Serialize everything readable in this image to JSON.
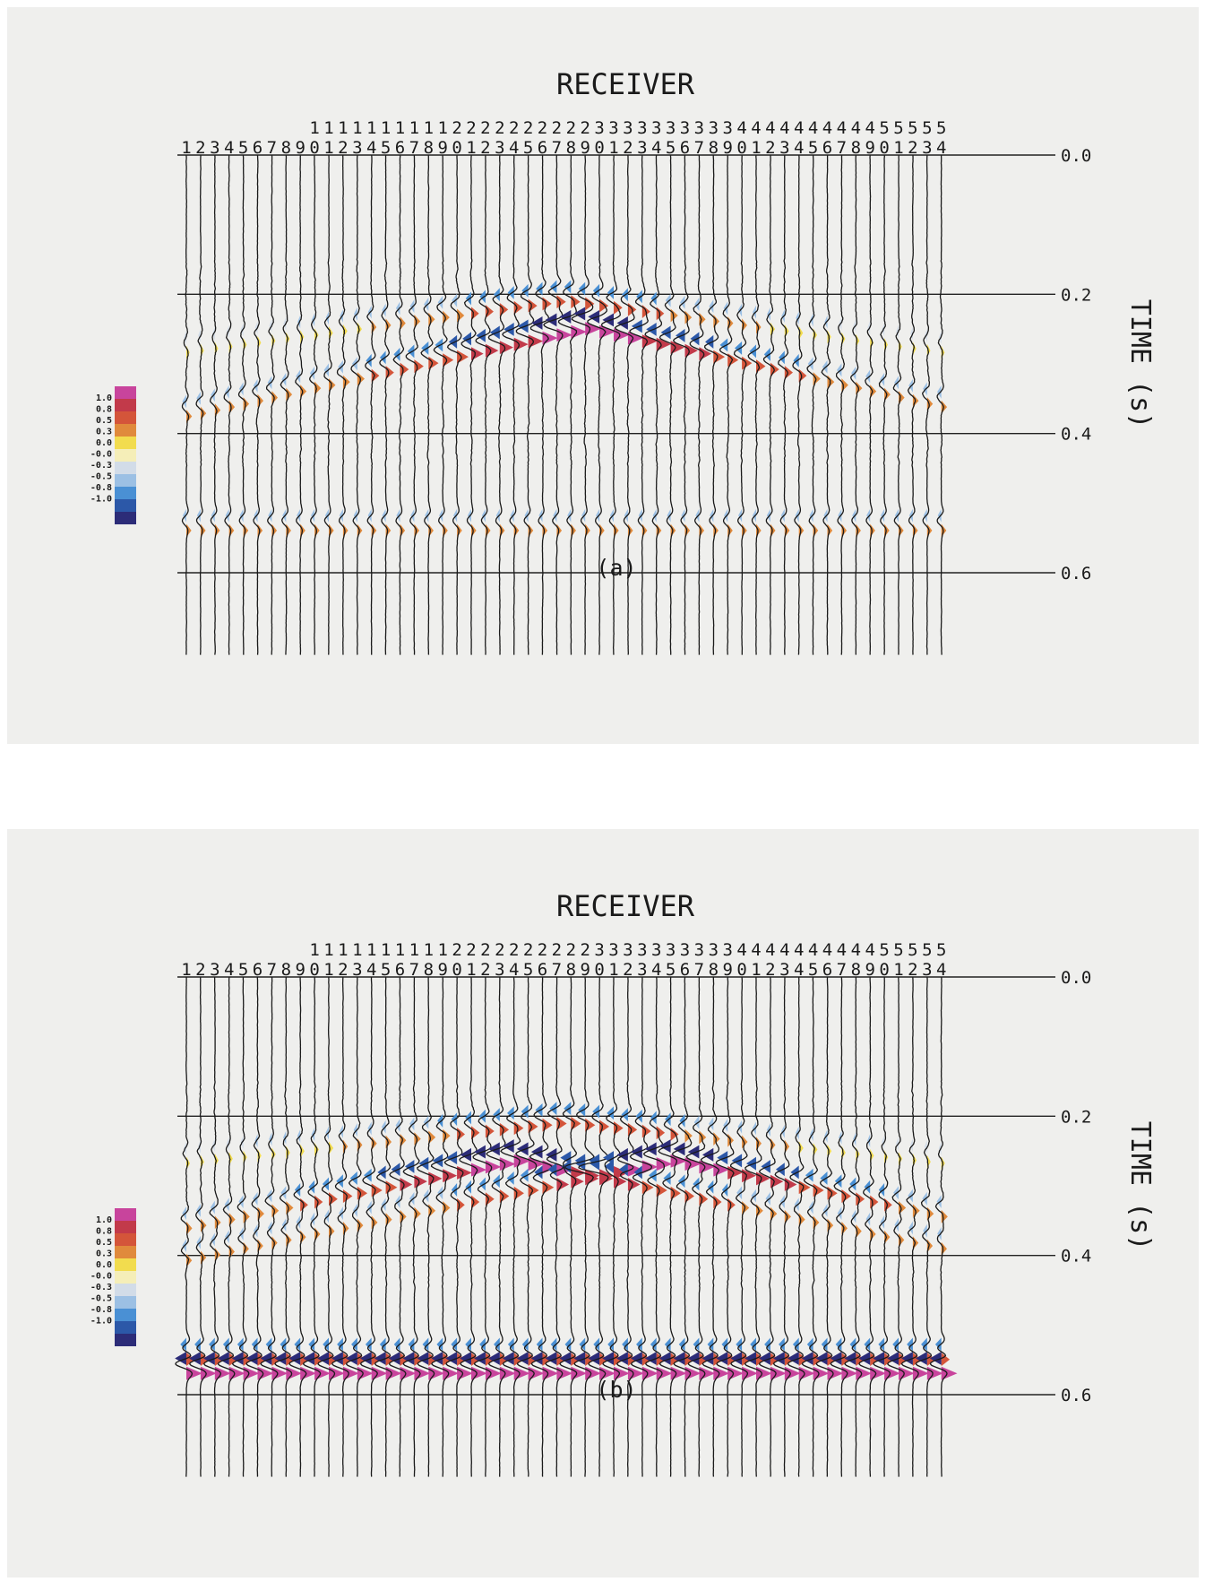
{
  "chart_data": [
    {
      "type": "seismic-wiggle",
      "panel_label": "(a)",
      "title": "RECEIVER",
      "ylabel": "TIME (s)",
      "receivers": {
        "first": 1,
        "last": 54
      },
      "ylim": [
        0.0,
        0.72
      ],
      "y_ticks": [
        "0.0",
        "0.2",
        "0.4",
        "0.6"
      ],
      "colorbar": {
        "labels": [
          "1.0",
          "0.8",
          "0.5",
          "0.3",
          "0.0",
          "-0.0",
          "-0.3",
          "-0.5",
          "-0.8",
          "-1.0"
        ],
        "colors": [
          "#c8449c",
          "#c23a4a",
          "#d4553a",
          "#e08a3c",
          "#f2dc4e",
          "#f5eeb8",
          "#d2dce8",
          "#9cc0e4",
          "#4a90d4",
          "#2c58a8",
          "#2c2c78"
        ]
      },
      "events": [
        {
          "description": "reflection",
          "t0": 0.195,
          "center_receiver": 27.5,
          "moveout_per_receiver": 0.0028,
          "peak_amplitude": 0.55
        },
        {
          "description": "diffraction",
          "t0": 0.235,
          "center_receiver": 29,
          "moveout_per_receiver": 0.0045,
          "peak_amplitude": 0.95
        },
        {
          "description": "flat reflector",
          "t0": 0.525,
          "center_receiver": 27.5,
          "moveout_per_receiver": 0.0,
          "peak_amplitude": 0.3
        }
      ]
    },
    {
      "type": "seismic-wiggle",
      "panel_label": "(b)",
      "title": "RECEIVER",
      "ylabel": "TIME (s)",
      "receivers": {
        "first": 1,
        "last": 54
      },
      "ylim": [
        0.0,
        0.72
      ],
      "y_ticks": [
        "0.0",
        "0.2",
        "0.4",
        "0.6"
      ],
      "colorbar": {
        "labels": [
          "1.0",
          "0.8",
          "0.5",
          "0.3",
          "0.0",
          "-0.0",
          "-0.3",
          "-0.5",
          "-0.8",
          "-1.0"
        ],
        "colors": [
          "#c8449c",
          "#c23a4a",
          "#d4553a",
          "#e08a3c",
          "#f2dc4e",
          "#f5eeb8",
          "#d2dce8",
          "#9cc0e4",
          "#4a90d4",
          "#2c58a8",
          "#2c2c78"
        ]
      },
      "events": [
        {
          "description": "reflection",
          "t0": 0.195,
          "center_receiver": 27.5,
          "moveout_per_receiver": 0.0022,
          "peak_amplitude": 0.6
        },
        {
          "description": "diffraction left",
          "t0": 0.25,
          "center_receiver": 24,
          "moveout_per_receiver": 0.0042,
          "peak_amplitude": 0.95
        },
        {
          "description": "diffraction right",
          "t0": 0.25,
          "center_receiver": 35,
          "moveout_per_receiver": 0.0042,
          "peak_amplitude": 0.95
        },
        {
          "description": "bottom reflector",
          "t0": 0.535,
          "center_receiver": 27.5,
          "moveout_per_receiver": 0.0,
          "peak_amplitude": 0.5
        },
        {
          "description": "bottom bright spot",
          "t0": 0.555,
          "center_receiver": 29,
          "moveout_per_receiver": 0.0,
          "peak_amplitude": 0.95
        }
      ]
    }
  ]
}
